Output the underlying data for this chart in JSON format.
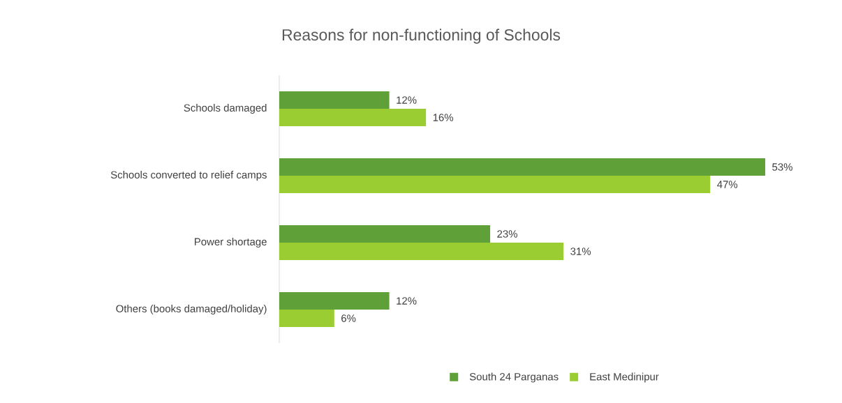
{
  "chart_data": {
    "type": "bar",
    "orientation": "horizontal",
    "title": "Reasons for non-functioning of Schools",
    "categories": [
      "Schools damaged",
      "Schools converted to relief camps",
      "Power shortage",
      "Others (books damaged/holiday)"
    ],
    "series": [
      {
        "name": "South 24 Parganas",
        "color": "#5fa138",
        "values": [
          12,
          53,
          23,
          12
        ],
        "value_labels": [
          "12%",
          "53%",
          "23%",
          "12%"
        ]
      },
      {
        "name": "East Medinipur",
        "color": "#9acd32",
        "values": [
          16,
          47,
          31,
          6
        ],
        "value_labels": [
          "16%",
          "47%",
          "31%",
          "6%"
        ]
      }
    ],
    "legend": "bottom"
  }
}
